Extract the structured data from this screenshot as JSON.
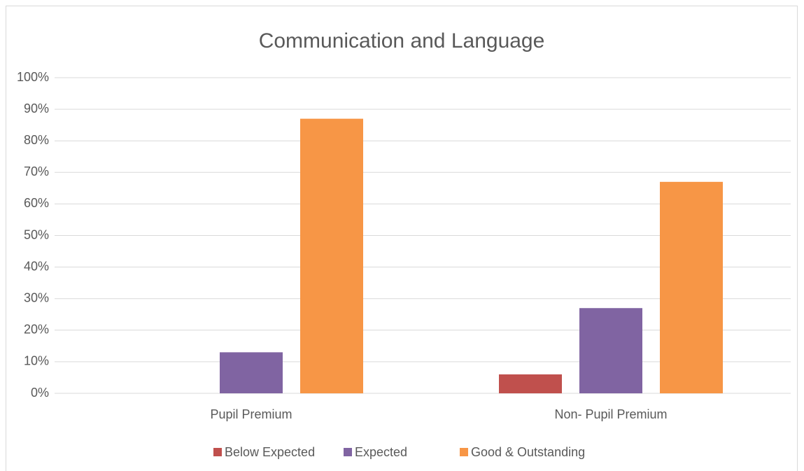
{
  "chart_data": {
    "type": "bar",
    "title": "Communication and Language",
    "categories": [
      "Pupil Premium",
      "Non- Pupil Premium"
    ],
    "series": [
      {
        "name": "Below Expected",
        "color": "#c0504d",
        "values": [
          0,
          6
        ]
      },
      {
        "name": "Expected",
        "color": "#8064a2",
        "values": [
          13,
          27
        ]
      },
      {
        "name": "Good & Outstanding",
        "color": "#f79646",
        "values": [
          87,
          67
        ]
      }
    ],
    "ylim": [
      0,
      100
    ],
    "yticks": [
      {
        "value": 0,
        "label": "0%"
      },
      {
        "value": 10,
        "label": "10%"
      },
      {
        "value": 20,
        "label": "20%"
      },
      {
        "value": 30,
        "label": "30%"
      },
      {
        "value": 40,
        "label": "40%"
      },
      {
        "value": 50,
        "label": "50%"
      },
      {
        "value": 60,
        "label": "60%"
      },
      {
        "value": 70,
        "label": "70%"
      },
      {
        "value": 80,
        "label": "80%"
      },
      {
        "value": 90,
        "label": "90%"
      },
      {
        "value": 100,
        "label": "100%"
      }
    ],
    "grid": true,
    "legend": "bottom"
  }
}
